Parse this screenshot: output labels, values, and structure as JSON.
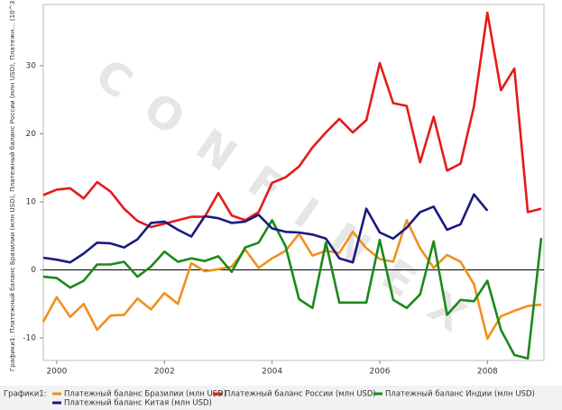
{
  "chart_data": {
    "type": "line",
    "y_axis_label": "Графики1: Платежный баланс Бразилии (млн USD), Платежный баланс России (млн USD), Платежн... (10^3)",
    "legend_title": "Графики1:",
    "watermark": "CONFINEX",
    "x": [
      1999.75,
      2000,
      2000.25,
      2000.5,
      2000.75,
      2001,
      2001.25,
      2001.5,
      2001.75,
      2002,
      2002.25,
      2002.5,
      2002.75,
      2003,
      2003.25,
      2003.5,
      2003.75,
      2004,
      2004.25,
      2004.5,
      2004.75,
      2005,
      2005.25,
      2005.5,
      2005.75,
      2006,
      2006.25,
      2006.5,
      2006.75,
      2007,
      2007.25,
      2007.5,
      2007.75,
      2008,
      2008.25,
      2008.5,
      2008.75,
      2009
    ],
    "series": [
      {
        "name": "Платежный баланс Бразилии (млн USD)",
        "color": "#f0901e",
        "values": [
          -7.6,
          -4,
          -6.9,
          -5,
          -8.8,
          -6.7,
          -6.6,
          -4.2,
          -5.8,
          -3.4,
          -5,
          1,
          -0.2,
          0.1,
          0.5,
          3,
          0.3,
          1.7,
          2.8,
          5.3,
          2.1,
          2.8,
          2.5,
          5.6,
          3.2,
          1.6,
          1.2,
          7.3,
          3.2,
          0.3,
          2.2,
          1.2,
          -2.1,
          -10.1,
          -6.8,
          -6,
          -5.3,
          -5.1
        ]
      },
      {
        "name": "Платежный баланс России (млн USD)",
        "color": "#e41b1b",
        "values": [
          11,
          11.8,
          12,
          10.5,
          12.9,
          11.5,
          9,
          7.2,
          6.3,
          6.8,
          7.3,
          7.8,
          7.8,
          11.3,
          8,
          7.3,
          8.5,
          12.8,
          13.6,
          15.2,
          18,
          20.2,
          22.2,
          20.2,
          22,
          30.4,
          24.5,
          24.1,
          15.8,
          22.5,
          14.6,
          15.6,
          24,
          37.8,
          26.4,
          29.6,
          8.5,
          9
        ]
      },
      {
        "name": "Платежный баланс Индии (млн USD)",
        "color": "#1a8a1a",
        "values": [
          -1,
          -1.2,
          -2.6,
          -1.6,
          0.8,
          0.8,
          1.2,
          -1,
          0.5,
          2.7,
          1.2,
          1.7,
          1.3,
          2,
          -0.3,
          3.3,
          4,
          7.3,
          3.5,
          -4.3,
          -5.6,
          4,
          -4.8,
          -4.8,
          -4.8,
          4.4,
          -4.4,
          -5.6,
          -3.6,
          4.2,
          -6.6,
          -4.4,
          -4.6,
          -1.6,
          -8.8,
          -12.5,
          -13,
          4.7
        ]
      },
      {
        "name": "Платежный баланс Китая (млн USD)",
        "color": "#1a1a80",
        "values": [
          1.8,
          1.5,
          1.1,
          2.4,
          4,
          3.9,
          3.3,
          4.5,
          6.9,
          7.1,
          5.9,
          4.9,
          7.9,
          7.6,
          6.9,
          7.1,
          8.1,
          6.1,
          5.6,
          5.5,
          5.2,
          4.6,
          1.7,
          1.1,
          9,
          5.5,
          4.6,
          6.2,
          8.5,
          9.3,
          5.9,
          6.7,
          11.1,
          8.7,
          null,
          null,
          null,
          null
        ]
      }
    ],
    "xlim": [
      1999.75,
      2009.05
    ],
    "xticks": [
      2000,
      2002,
      2004,
      2006,
      2008
    ],
    "ylim": [
      -13.3,
      39
    ],
    "yticks": [
      -10,
      0,
      10,
      20,
      30
    ],
    "zero_line": true,
    "grid": false,
    "legend": "bottom"
  }
}
